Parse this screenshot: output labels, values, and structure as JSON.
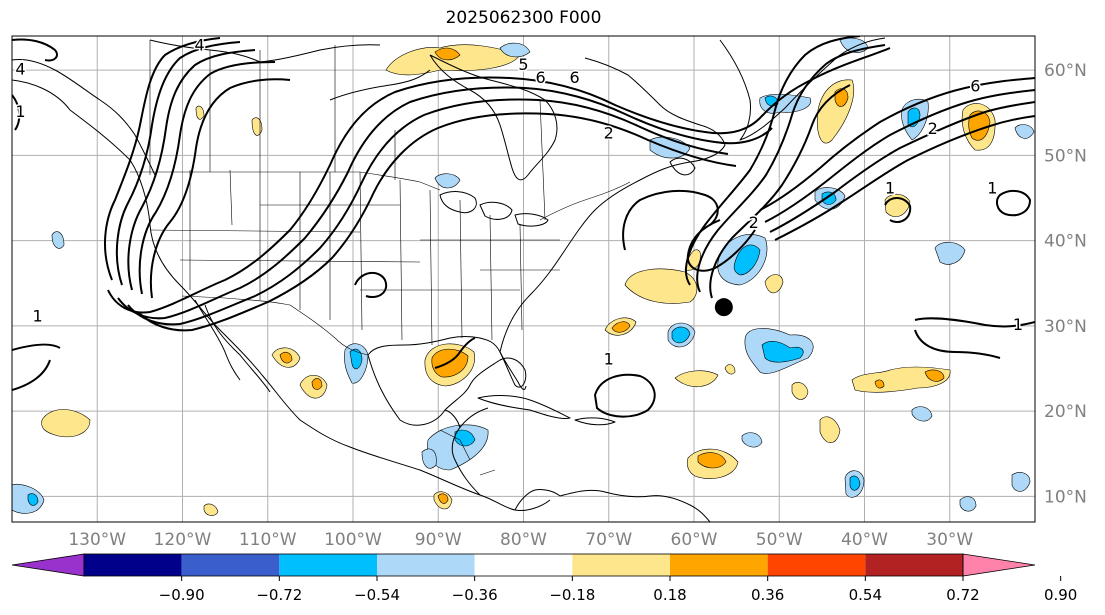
{
  "title": "2025062300 F000",
  "map": {
    "projection": "equirectangular",
    "lon_range": [
      -140,
      -20
    ],
    "lat_range": [
      7,
      64
    ],
    "meridians": [
      -130,
      -120,
      -110,
      -100,
      -90,
      -80,
      -70,
      -60,
      -50,
      -40,
      -30
    ],
    "parallels": [
      10,
      20,
      30,
      40,
      50,
      60
    ],
    "lon_labels": [
      "130°W",
      "120°W",
      "110°W",
      "100°W",
      "90°W",
      "80°W",
      "70°W",
      "60°W",
      "50°W",
      "40°W",
      "30°W"
    ],
    "lat_labels": [
      "10°N",
      "20°N",
      "30°N",
      "40°N",
      "50°N",
      "60°N"
    ],
    "grid": true,
    "marker": {
      "lon": -56.5,
      "lat": 32.2,
      "color": "#000000"
    },
    "contour_labels": [
      {
        "text": "4",
        "lon": -139,
        "lat": 59.5
      },
      {
        "text": "4",
        "lon": -118,
        "lat": 62.3
      },
      {
        "text": "1",
        "lon": -139,
        "lat": 54.5
      },
      {
        "text": "5",
        "lon": -80,
        "lat": 60
      },
      {
        "text": "6",
        "lon": -78,
        "lat": 58.5
      },
      {
        "text": "6",
        "lon": -74,
        "lat": 58.5
      },
      {
        "text": "2",
        "lon": -70,
        "lat": 52
      },
      {
        "text": "2",
        "lon": -53,
        "lat": 41.5
      },
      {
        "text": "2",
        "lon": -32,
        "lat": 52.5
      },
      {
        "text": "6",
        "lon": -27,
        "lat": 57.5
      },
      {
        "text": "1",
        "lon": -37,
        "lat": 45.5
      },
      {
        "text": "1",
        "lon": -25,
        "lat": 45.5
      },
      {
        "text": "1",
        "lon": -137,
        "lat": 30.5
      },
      {
        "text": "1",
        "lon": -70,
        "lat": 25.5
      },
      {
        "text": "1",
        "lon": -22,
        "lat": 29.5
      }
    ]
  },
  "colorbar": {
    "extend": "both",
    "colors": [
      "#9932cc",
      "#00008b",
      "#3a5fcd",
      "#00bfff",
      "#add8f7",
      "#ffffff",
      "#fee68c",
      "#ffa500",
      "#ff4500",
      "#b22222",
      "#ff82ab"
    ],
    "boundaries": [
      -0.9,
      -0.72,
      -0.54,
      -0.36,
      -0.18,
      0.18,
      0.36,
      0.54,
      0.72,
      0.9
    ],
    "tick_labels": [
      "−0.90",
      "−0.72",
      "−0.54",
      "−0.36",
      "−0.18",
      "0.18",
      "0.36",
      "0.54",
      "0.72",
      "0.90"
    ]
  }
}
